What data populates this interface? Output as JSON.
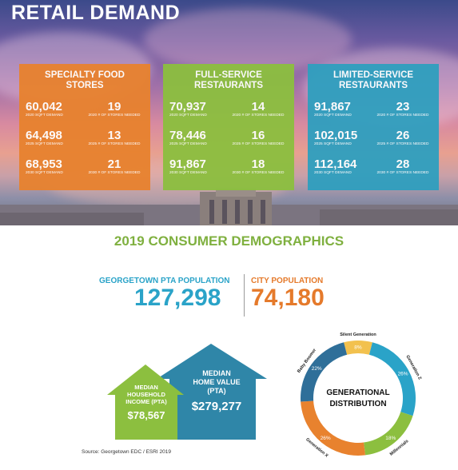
{
  "hero": {
    "title": "RETAIL DEMAND"
  },
  "panels": [
    {
      "name": "SPECIALTY FOOD STORES",
      "color": "#e8822e",
      "rows": [
        {
          "sqft": "60,042",
          "sqft_label": "2020 SQFT DEMAND",
          "stores": "19",
          "stores_label": "2020 # OF STORES NEEDED"
        },
        {
          "sqft": "64,498",
          "sqft_label": "2025 SQFT DEMAND",
          "stores": "13",
          "stores_label": "2025 # OF STORES NEEDED"
        },
        {
          "sqft": "68,953",
          "sqft_label": "2030 SQFT DEMAND",
          "stores": "21",
          "stores_label": "2030 # OF STORES NEEDED"
        }
      ]
    },
    {
      "name": "FULL-SERVICE RESTAURANTS",
      "color": "#8cbf3f",
      "rows": [
        {
          "sqft": "70,937",
          "sqft_label": "2020 SQFT DEMAND",
          "stores": "14",
          "stores_label": "2020 # OF STORES NEEDED"
        },
        {
          "sqft": "78,446",
          "sqft_label": "2025 SQFT DEMAND",
          "stores": "16",
          "stores_label": "2025 # OF STORES NEEDED"
        },
        {
          "sqft": "91,867",
          "sqft_label": "2030 SQFT DEMAND",
          "stores": "18",
          "stores_label": "2030 # OF STORES NEEDED"
        }
      ]
    },
    {
      "name": "LIMITED-SERVICE RESTAURANTS",
      "color": "#2f9fbf",
      "rows": [
        {
          "sqft": "91,867",
          "sqft_label": "2020 SQFT DEMAND",
          "stores": "23",
          "stores_label": "2020 # OF STORES NEEDED"
        },
        {
          "sqft": "102,015",
          "sqft_label": "2025 SQFT DEMAND",
          "stores": "26",
          "stores_label": "2025 # OF STORES NEEDED"
        },
        {
          "sqft": "112,164",
          "sqft_label": "2030 SQFT DEMAND",
          "stores": "28",
          "stores_label": "2030 # OF STORES NEEDED"
        }
      ]
    }
  ],
  "demographics": {
    "title": "2019 CONSUMER DEMOGRAPHICS",
    "pta_label": "GEORGETOWN PTA POPULATION",
    "pta_value": "127,298",
    "city_label": "CITY POPULATION",
    "city_value": "74,180"
  },
  "houses": {
    "income_label_1": "MEDIAN",
    "income_label_2": "HOUSEHOLD",
    "income_label_3": "INCOME (PTA)",
    "income_value": "$78,567",
    "home_label_1": "MEDIAN",
    "home_label_2": "HOME VALUE",
    "home_label_3": "(PTA)",
    "home_value": "$279,277",
    "green": "#8cbf3f",
    "blue": "#2f86a8"
  },
  "donut": {
    "center_1": "GENERATIONAL",
    "center_2": "DISTRIBUTION",
    "segments": [
      {
        "name": "Silent Generation",
        "value": 8,
        "label": "8%",
        "color": "#f2c14e"
      },
      {
        "name": "Generation Z",
        "value": 26,
        "label": "26%",
        "color": "#2aa3c8"
      },
      {
        "name": "Millennials",
        "value": 18,
        "label": "18%",
        "color": "#8cbf3f"
      },
      {
        "name": "Generation X",
        "value": 26,
        "label": "26%",
        "color": "#e8822e"
      },
      {
        "name": "Baby Boomer",
        "value": 22,
        "label": "22%",
        "color": "#2f6f99"
      }
    ]
  },
  "source": "Source: Georgetown EDC / ESRI 2019"
}
